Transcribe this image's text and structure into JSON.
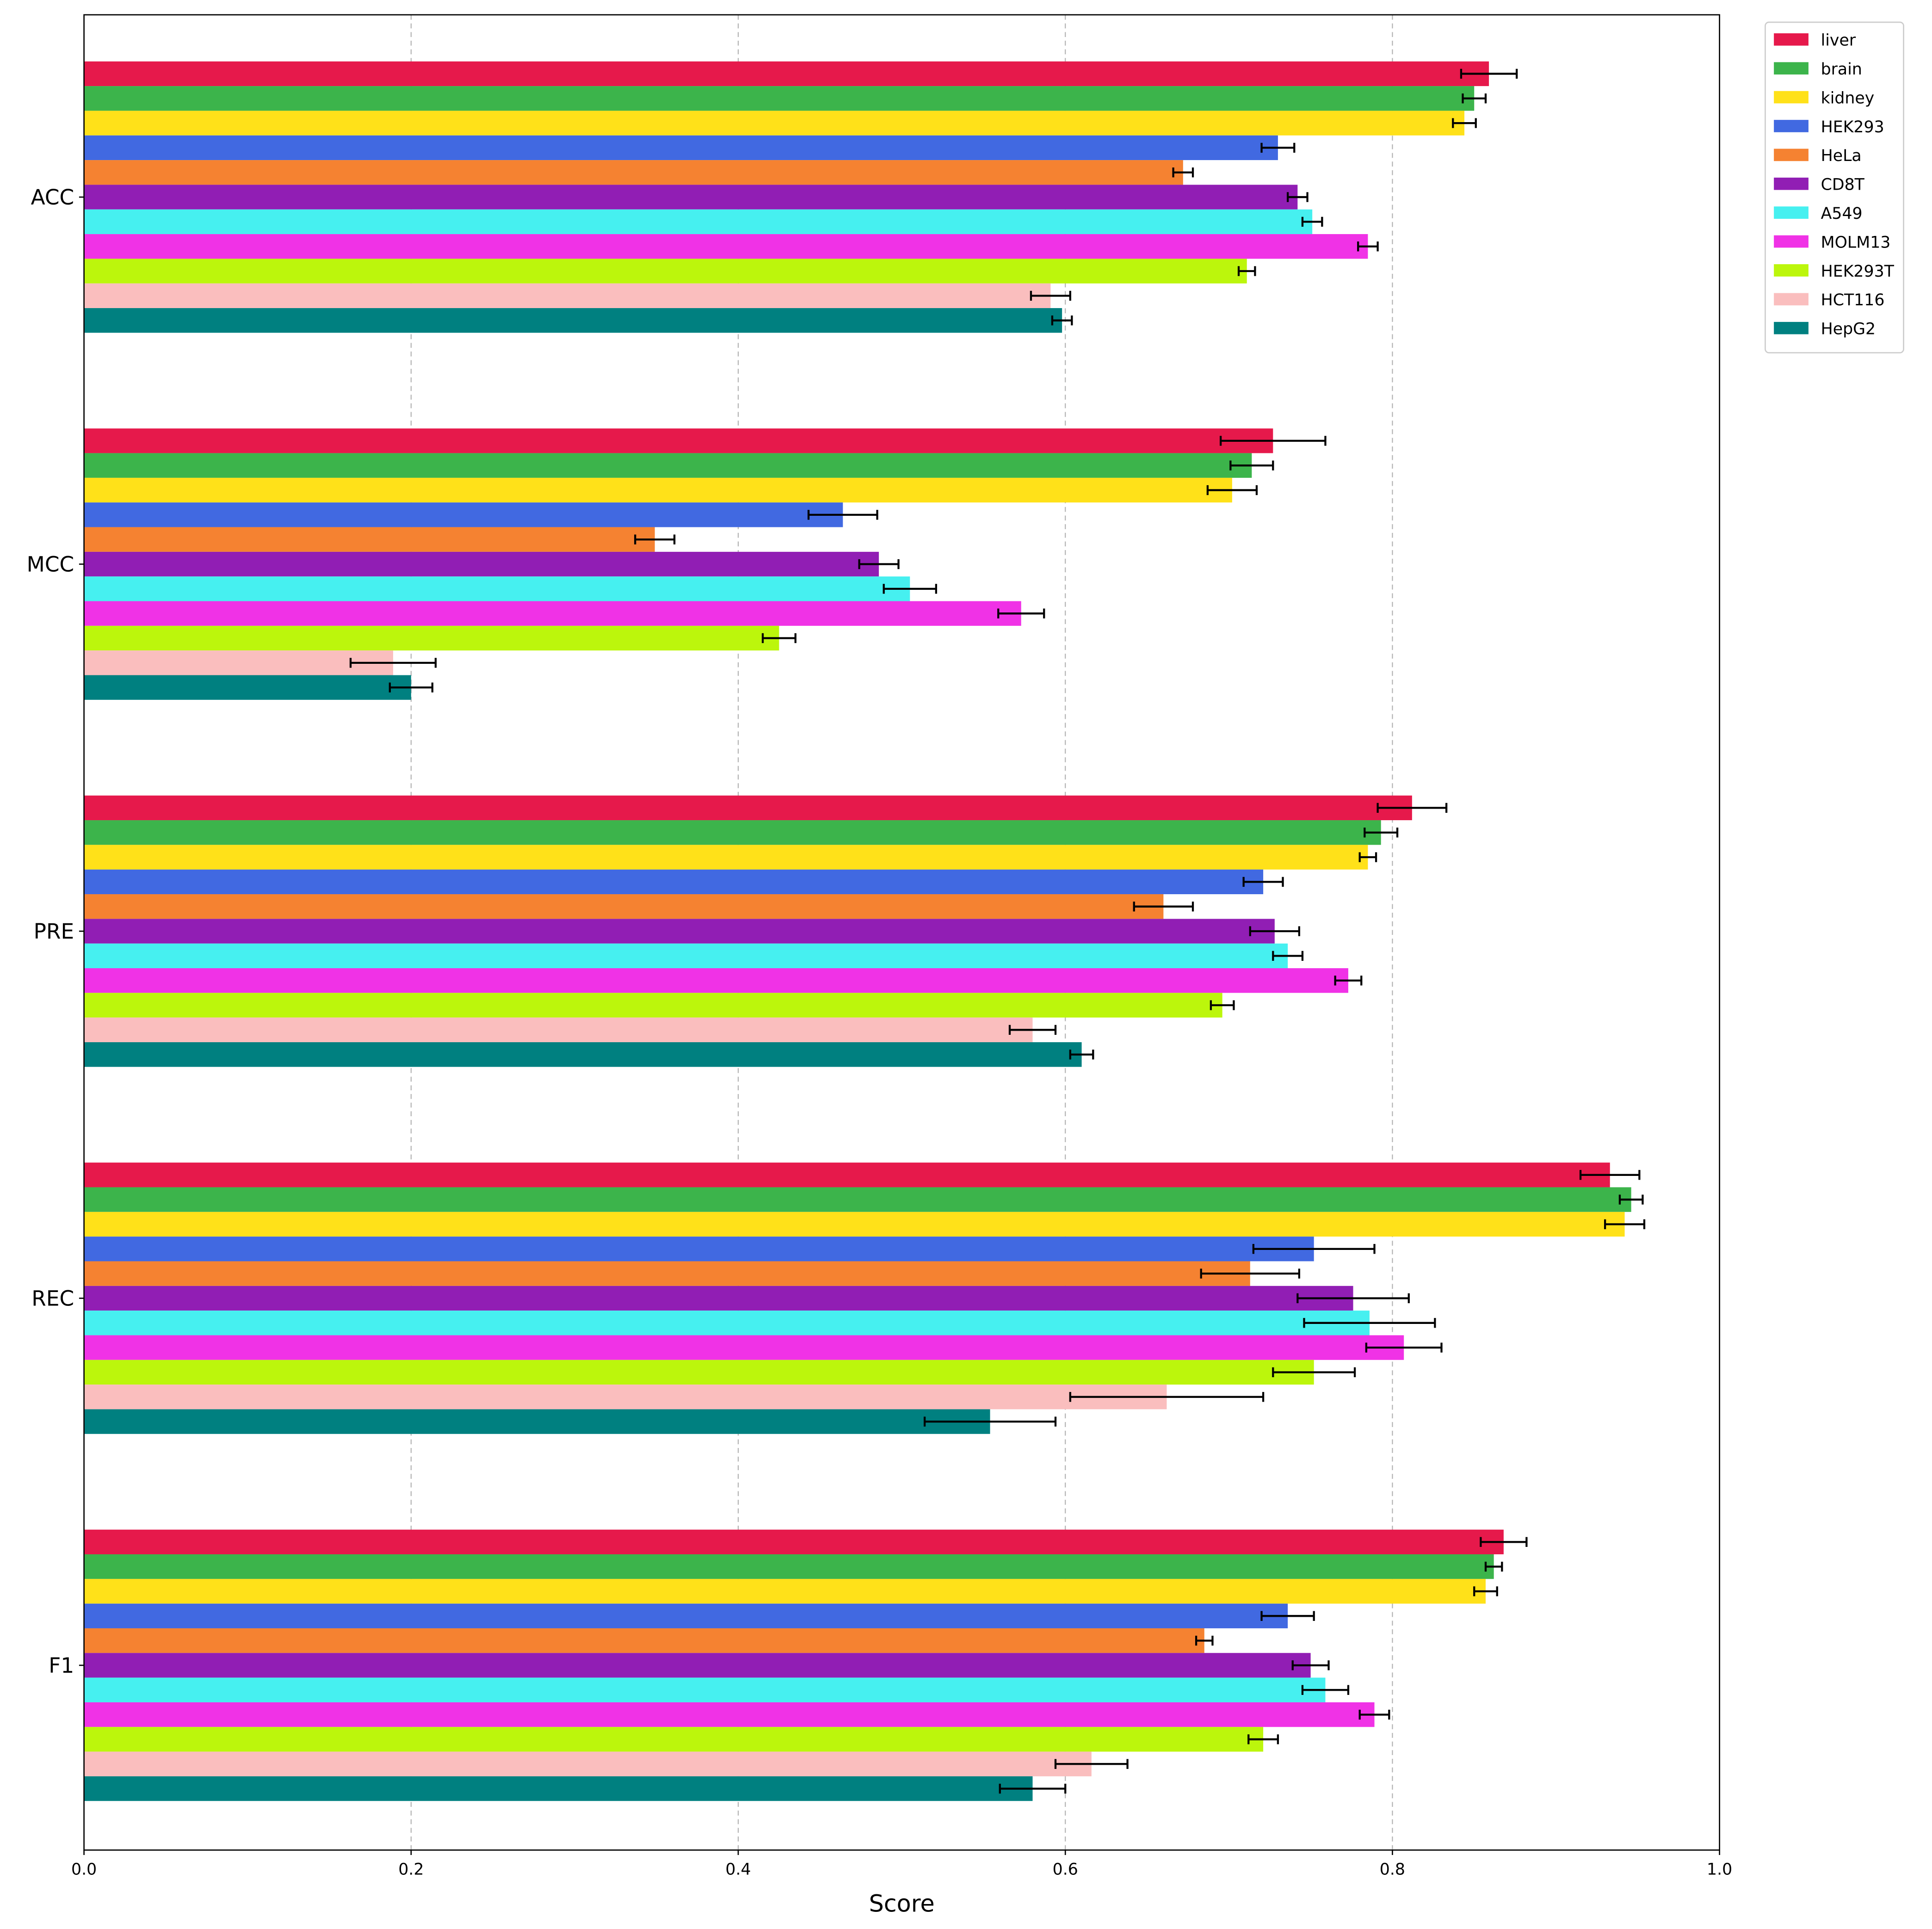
{
  "chart_data": {
    "type": "bar",
    "orientation": "horizontal",
    "categories": [
      "ACC",
      "MCC",
      "PRE",
      "REC",
      "F1"
    ],
    "xlabel": "Score",
    "ylabel": "",
    "title": "",
    "xlim": [
      0.0,
      1.0
    ],
    "xticks": [
      "0.0",
      "0.2",
      "0.4",
      "0.6",
      "0.8",
      "1.0"
    ],
    "grid": "x dashed",
    "legend_position": "outside top-right",
    "series": [
      {
        "name": "liver",
        "color": "#e6194b",
        "values": [
          0.859,
          0.727,
          0.812,
          0.933,
          0.868
        ],
        "errors": [
          0.017,
          0.032,
          0.021,
          0.018,
          0.014
        ]
      },
      {
        "name": "brain",
        "color": "#3cb44b",
        "values": [
          0.85,
          0.714,
          0.793,
          0.946,
          0.862
        ],
        "errors": [
          0.007,
          0.013,
          0.01,
          0.007,
          0.005
        ]
      },
      {
        "name": "kidney",
        "color": "#ffe119",
        "values": [
          0.844,
          0.702,
          0.785,
          0.942,
          0.857
        ],
        "errors": [
          0.007,
          0.015,
          0.005,
          0.012,
          0.007
        ]
      },
      {
        "name": "HEK293",
        "color": "#4169e1",
        "values": [
          0.73,
          0.464,
          0.721,
          0.752,
          0.736
        ],
        "errors": [
          0.01,
          0.021,
          0.012,
          0.037,
          0.016
        ]
      },
      {
        "name": "HeLa",
        "color": "#f58231",
        "values": [
          0.672,
          0.349,
          0.66,
          0.713,
          0.685
        ],
        "errors": [
          0.006,
          0.012,
          0.018,
          0.03,
          0.005
        ]
      },
      {
        "name": "CD8T",
        "color": "#911eb4",
        "values": [
          0.742,
          0.486,
          0.728,
          0.776,
          0.75
        ],
        "errors": [
          0.006,
          0.012,
          0.015,
          0.034,
          0.011
        ]
      },
      {
        "name": "A549",
        "color": "#46f0f0",
        "values": [
          0.751,
          0.505,
          0.736,
          0.786,
          0.759
        ],
        "errors": [
          0.006,
          0.016,
          0.009,
          0.04,
          0.014
        ]
      },
      {
        "name": "MOLM13",
        "color": "#f032e6",
        "values": [
          0.785,
          0.573,
          0.773,
          0.807,
          0.789
        ],
        "errors": [
          0.006,
          0.014,
          0.008,
          0.023,
          0.009
        ]
      },
      {
        "name": "HEK293T",
        "color": "#bcf60c",
        "values": [
          0.711,
          0.425,
          0.696,
          0.752,
          0.721
        ],
        "errors": [
          0.005,
          0.01,
          0.007,
          0.025,
          0.009
        ]
      },
      {
        "name": "HCT116",
        "color": "#fabebe",
        "values": [
          0.591,
          0.189,
          0.58,
          0.662,
          0.616
        ],
        "errors": [
          0.012,
          0.026,
          0.014,
          0.059,
          0.022
        ]
      },
      {
        "name": "HepG2",
        "color": "#008080",
        "values": [
          0.598,
          0.2,
          0.61,
          0.554,
          0.58
        ],
        "errors": [
          0.006,
          0.013,
          0.007,
          0.04,
          0.02
        ]
      }
    ]
  }
}
